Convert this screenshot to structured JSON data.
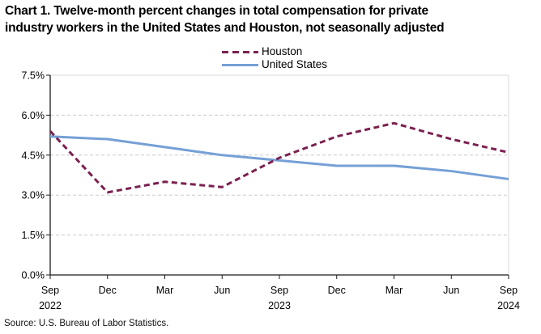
{
  "title": {
    "line1": "Chart 1. Twelve-month percent changes in total compensation for private",
    "line2": "industry workers in the United States and Houston, not seasonally adjusted"
  },
  "legend": {
    "items": [
      {
        "label": "Houston"
      },
      {
        "label": "United States"
      }
    ]
  },
  "source_note": "Source: U.S. Bureau of Labor Statistics.",
  "chart_data": {
    "type": "line",
    "title": "Chart 1. Twelve-month percent changes in total compensation for private industry workers in the United States and Houston, not seasonally adjusted",
    "categories": [
      "Sep 2022",
      "Dec 2022",
      "Mar 2023",
      "Jun 2023",
      "Sep 2023",
      "Dec 2023",
      "Mar 2024",
      "Jun 2024",
      "Sep 2024"
    ],
    "x_month_labels": [
      "Sep",
      "Dec",
      "Mar",
      "Jun",
      "Sep",
      "Dec",
      "Mar",
      "Jun",
      "Sep"
    ],
    "x_year_labels": [
      {
        "index": 0,
        "label": "2022"
      },
      {
        "index": 4,
        "label": "2023"
      },
      {
        "index": 8,
        "label": "2024"
      }
    ],
    "series": [
      {
        "name": "Houston",
        "color": "#7B2150",
        "dashed": true,
        "values": [
          5.4,
          3.1,
          3.5,
          3.3,
          4.4,
          5.2,
          5.7,
          5.1,
          4.6
        ]
      },
      {
        "name": "United States",
        "color": "#75A0D6",
        "dashed": false,
        "values": [
          5.2,
          5.1,
          4.8,
          4.5,
          4.3,
          4.1,
          4.1,
          3.9,
          3.6
        ]
      }
    ],
    "ylabel": "",
    "xlabel": "",
    "ylim": [
      0,
      7.5
    ],
    "y_ticks": [
      0,
      1.5,
      3,
      4.5,
      6,
      7.5
    ],
    "y_tick_labels": [
      "0.0%",
      "1.5%",
      "3.0%",
      "4.5%",
      "6.0%",
      "7.5%"
    ],
    "grid": "horizontal-dashed",
    "legend_position": "top-center",
    "axis_color": "#1a1a1a",
    "grid_color": "#c9c9c9",
    "border_color": "#d9d9d9"
  }
}
